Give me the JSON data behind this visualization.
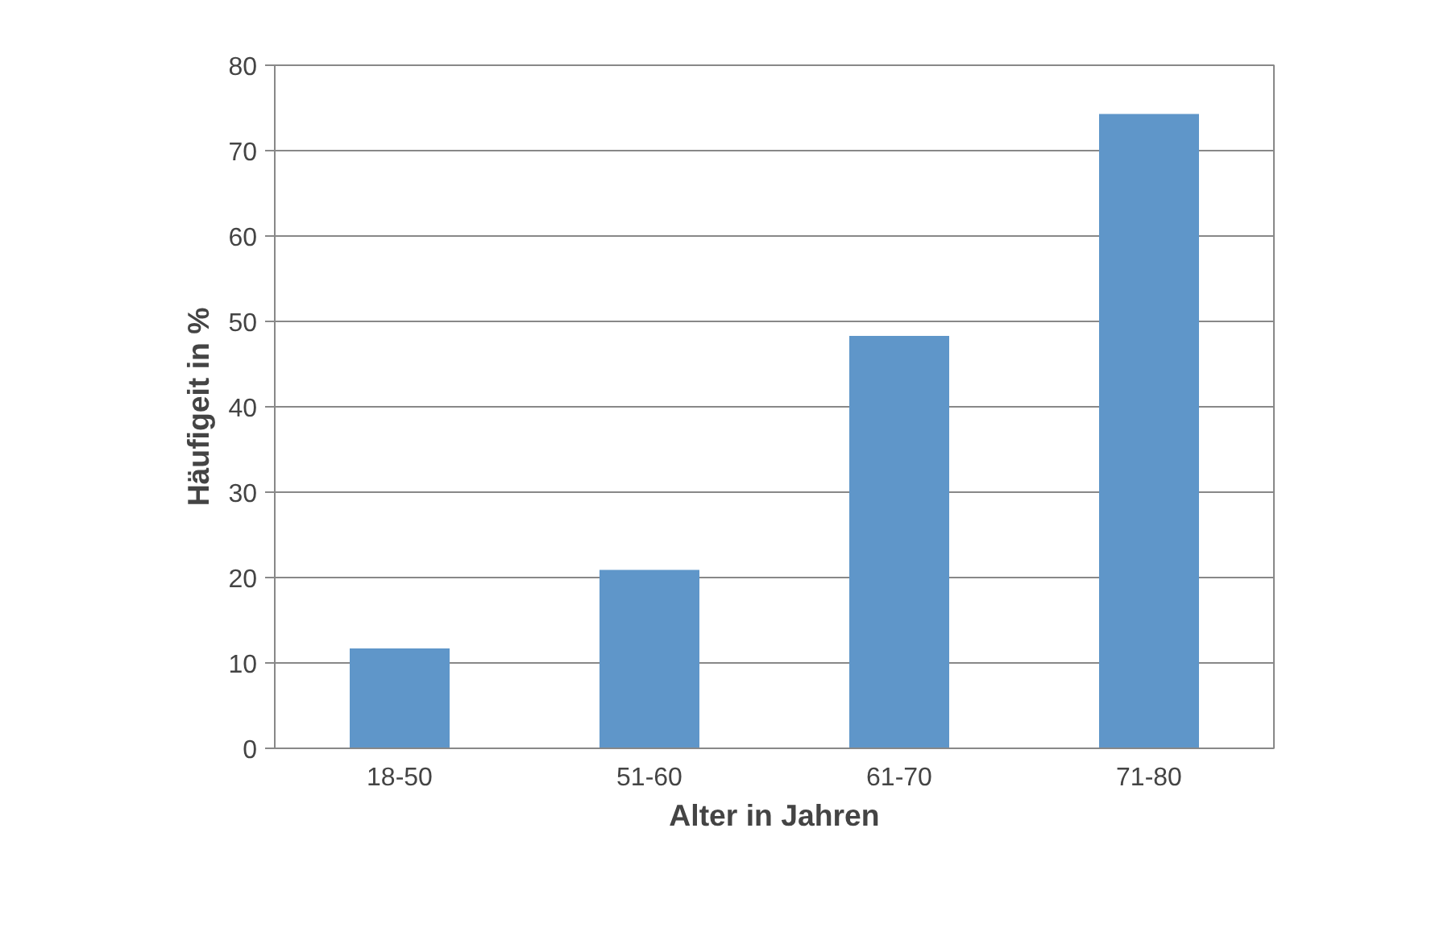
{
  "chart_data": {
    "type": "bar",
    "xlabel": "Alter in Jahren",
    "ylabel": "Häufigeit in %",
    "categories": [
      "18-50",
      "51-60",
      "61-70",
      "71-80"
    ],
    "values": [
      11.7,
      20.9,
      48.3,
      74.3
    ],
    "color": "#5f96c9",
    "ylim": [
      0,
      80
    ],
    "yticks": [
      0,
      10,
      20,
      30,
      40,
      50,
      60,
      70,
      80
    ],
    "grid": "y"
  }
}
